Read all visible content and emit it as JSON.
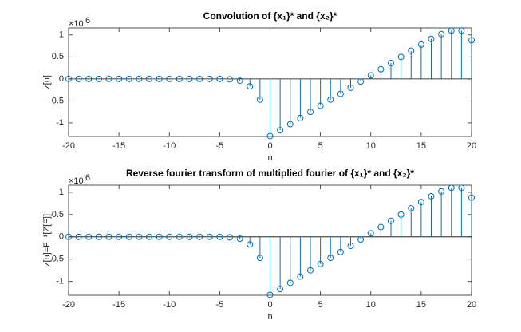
{
  "chart_data": [
    {
      "type": "stem",
      "title": "Convolution of {x₁}* and {x₂}*",
      "xlabel": "n",
      "ylabel": "z[n]",
      "multiplier": "×10",
      "multiplier_exponent": "6",
      "color": "#0072bd",
      "x": [
        -20,
        -19,
        -18,
        -17,
        -16,
        -15,
        -14,
        -13,
        -12,
        -11,
        -10,
        -9,
        -8,
        -7,
        -6,
        -5,
        -4,
        -3,
        -2,
        -1,
        0,
        1,
        2,
        3,
        4,
        5,
        6,
        7,
        8,
        9,
        10,
        11,
        12,
        13,
        14,
        15,
        16,
        17,
        18,
        19,
        20
      ],
      "values": [
        0,
        0,
        0,
        0,
        0,
        0,
        0,
        0,
        0,
        0,
        0,
        0,
        0,
        0,
        0,
        0,
        -0.01,
        -0.04,
        -0.17,
        -0.47,
        -1.3,
        -1.17,
        -1.03,
        -0.89,
        -0.75,
        -0.61,
        -0.47,
        -0.34,
        -0.2,
        -0.06,
        0.08,
        0.22,
        0.36,
        0.5,
        0.64,
        0.78,
        0.91,
        1.02,
        1.1,
        1.1,
        0.88
      ],
      "xlim": [
        -20,
        20
      ],
      "xticks": [
        -20,
        -15,
        -10,
        -5,
        0,
        5,
        10,
        15,
        20
      ],
      "ylim": [
        -1.31,
        1.16
      ],
      "yticks": [
        -1,
        -0.5,
        0,
        0.5,
        1
      ]
    },
    {
      "type": "stem",
      "title": "Reverse fourier transform of multiplied fourier of {x₁}* and {x₂}*",
      "xlabel": "n",
      "ylabel": "z[n]=F⁻¹[Z[F]]",
      "multiplier": "×10",
      "multiplier_exponent": "6",
      "color": "#0072bd",
      "x": [
        -20,
        -19,
        -18,
        -17,
        -16,
        -15,
        -14,
        -13,
        -12,
        -11,
        -10,
        -9,
        -8,
        -7,
        -6,
        -5,
        -4,
        -3,
        -2,
        -1,
        0,
        1,
        2,
        3,
        4,
        5,
        6,
        7,
        8,
        9,
        10,
        11,
        12,
        13,
        14,
        15,
        16,
        17,
        18,
        19,
        20
      ],
      "values": [
        0,
        0,
        0,
        0,
        0,
        0,
        0,
        0,
        0,
        0,
        0,
        0,
        0,
        0,
        0,
        0,
        -0.01,
        -0.04,
        -0.17,
        -0.47,
        -1.3,
        -1.17,
        -1.03,
        -0.89,
        -0.75,
        -0.61,
        -0.47,
        -0.34,
        -0.2,
        -0.06,
        0.08,
        0.22,
        0.36,
        0.5,
        0.64,
        0.78,
        0.91,
        1.02,
        1.1,
        1.1,
        0.88
      ],
      "xlim": [
        -20,
        20
      ],
      "xticks": [
        -20,
        -15,
        -10,
        -5,
        0,
        5,
        10,
        15,
        20
      ],
      "ylim": [
        -1.31,
        1.16
      ],
      "yticks": [
        -1,
        -0.5,
        0,
        0.5,
        1
      ]
    }
  ]
}
